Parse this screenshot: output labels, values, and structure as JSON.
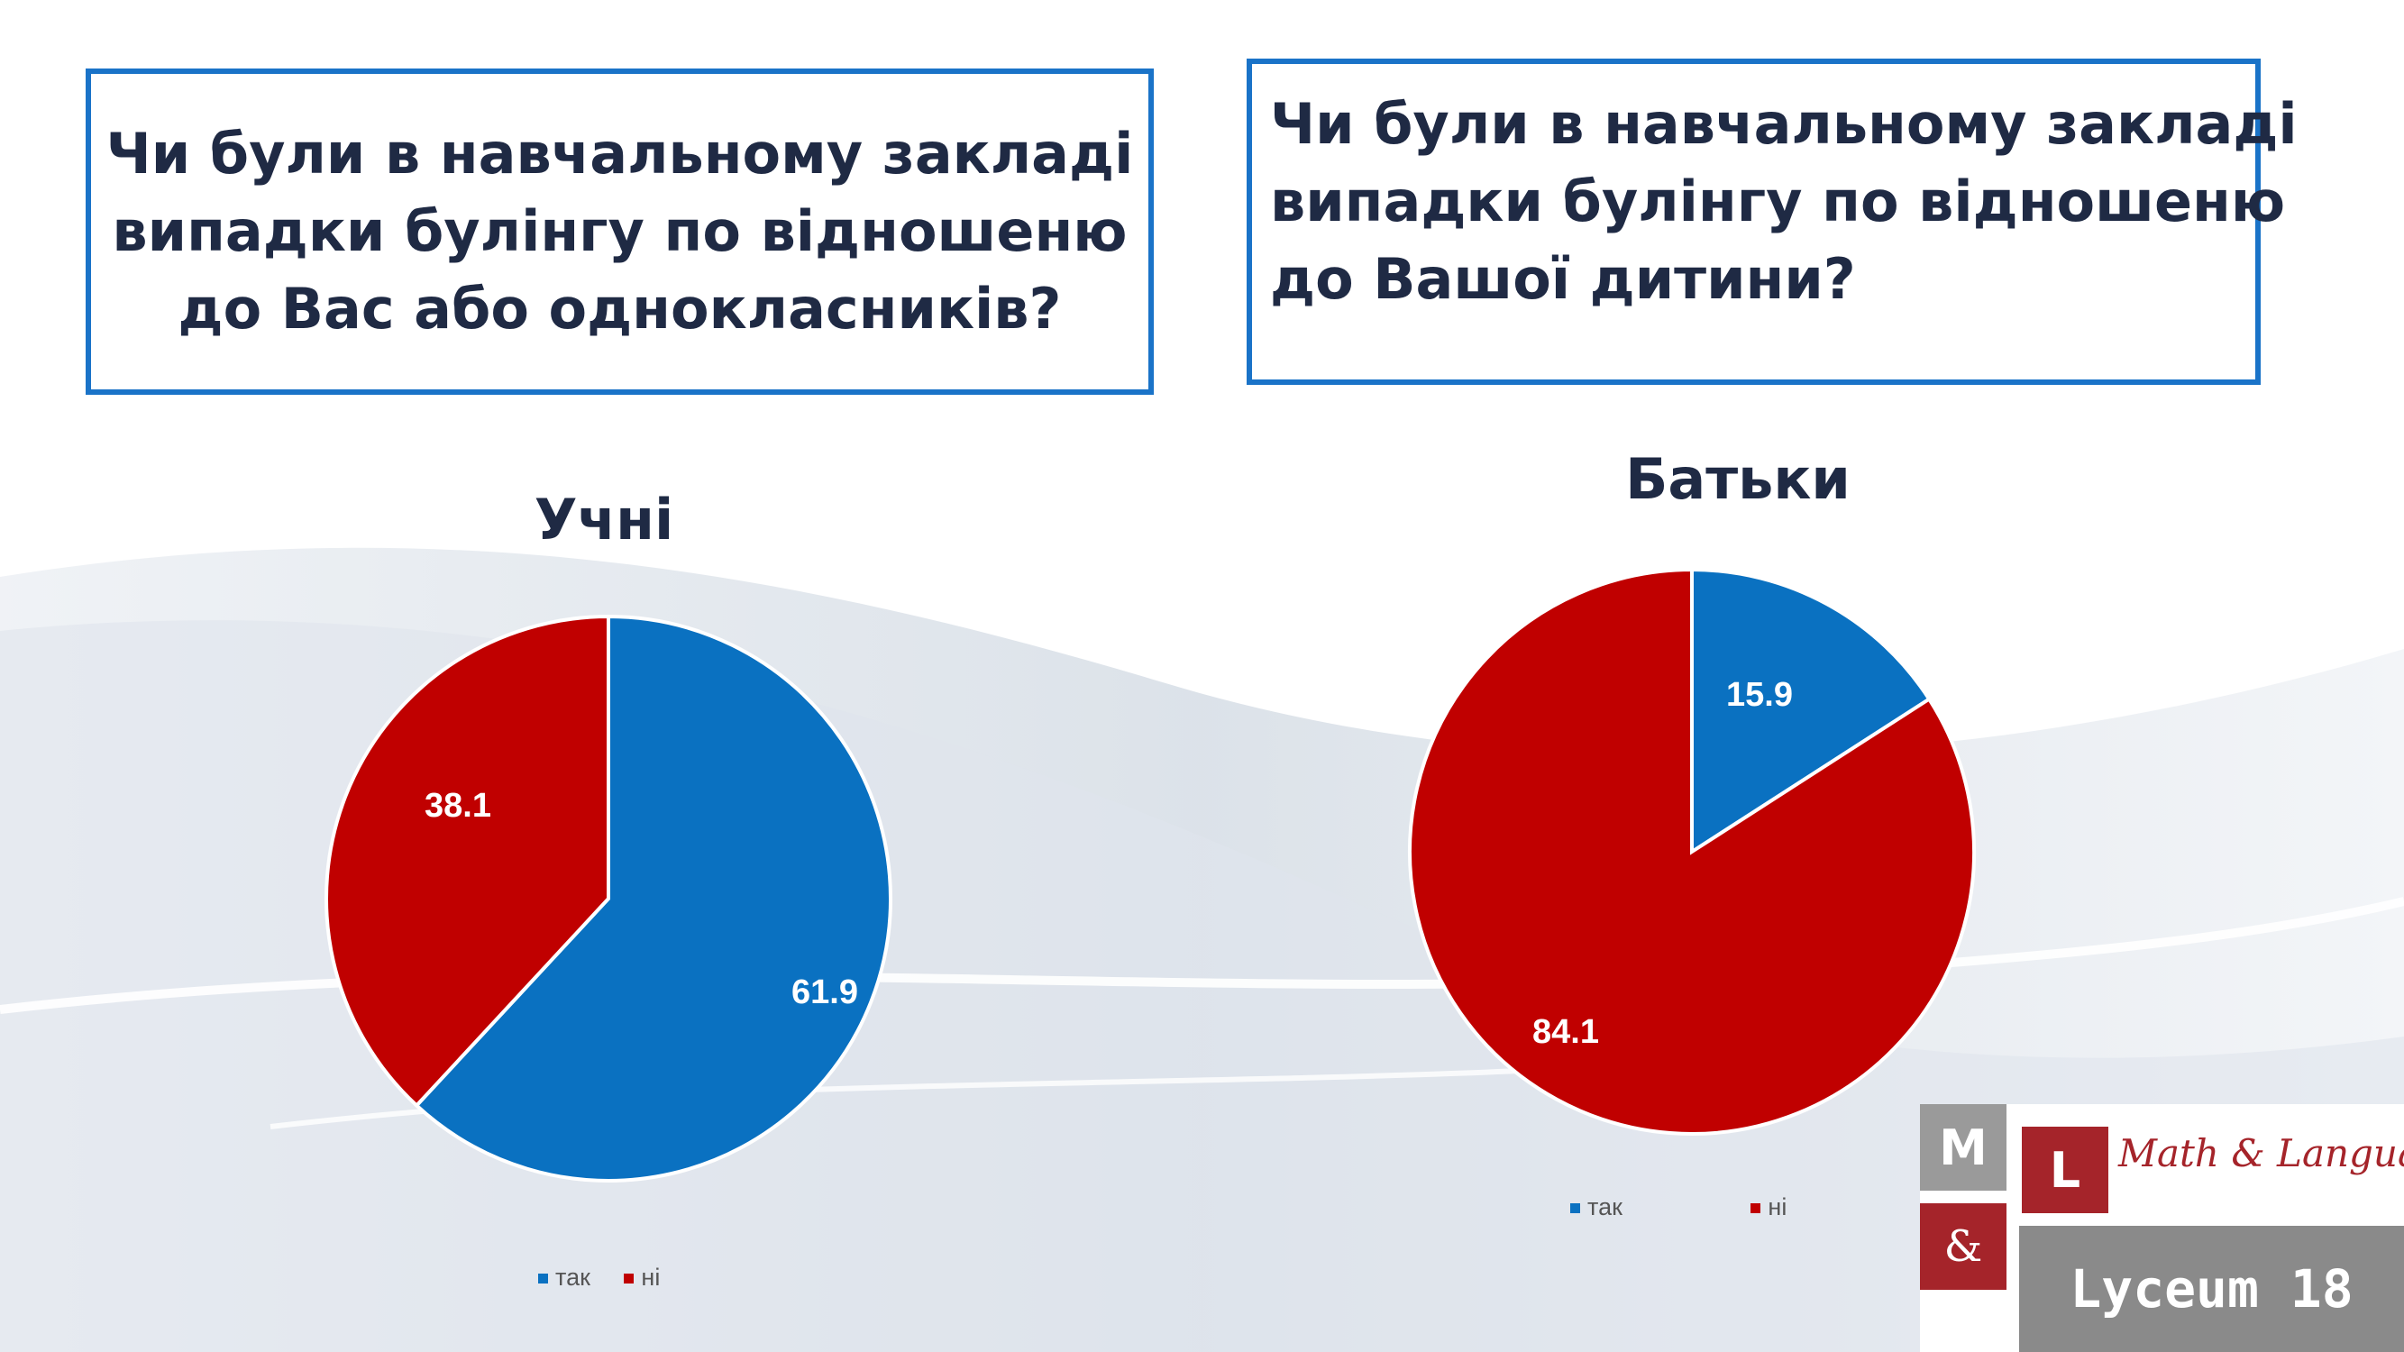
{
  "questions": {
    "left": [
      "Чи були в навчальному закладі",
      "випадки булінгу по відношеню",
      "до Вас  або однокласників?"
    ],
    "right": [
      "Чи були в навчальному закладі",
      "випадки булінгу по відношеню",
      "до Вашої дитини?"
    ]
  },
  "chart_data": [
    {
      "type": "pie",
      "title": "Учні",
      "categories": [
        "так",
        "ні"
      ],
      "values": [
        61.9,
        38.1
      ],
      "data_labels": [
        "61.9",
        "38.1"
      ],
      "colors": [
        "#0a71c1",
        "#c00000"
      ],
      "legend": "bottom"
    },
    {
      "type": "pie",
      "title": "Батьки",
      "categories": [
        "так",
        "ні"
      ],
      "values": [
        15.9,
        84.1
      ],
      "data_labels": [
        "15.9",
        "84.1"
      ],
      "colors": [
        "#0a71c1",
        "#c00000"
      ],
      "legend": "bottom"
    }
  ],
  "logo": {
    "m": "M",
    "l": "L",
    "amp": "&",
    "script": "Math & Language",
    "lyceum": "Lyceum 18"
  }
}
